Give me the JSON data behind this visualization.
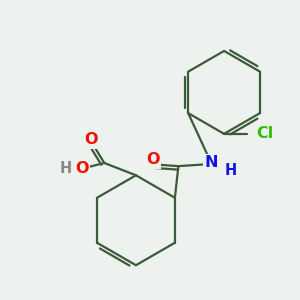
{
  "background_color": "#eef2ee",
  "bond_color": "#3a5a3a",
  "bond_width": 1.6,
  "atom_colors": {
    "O": "#ee1100",
    "N": "#1111ee",
    "Cl": "#33bb00",
    "C": "#3a5a3a"
  },
  "font_size": 11.5,
  "font_size_small": 10.5
}
